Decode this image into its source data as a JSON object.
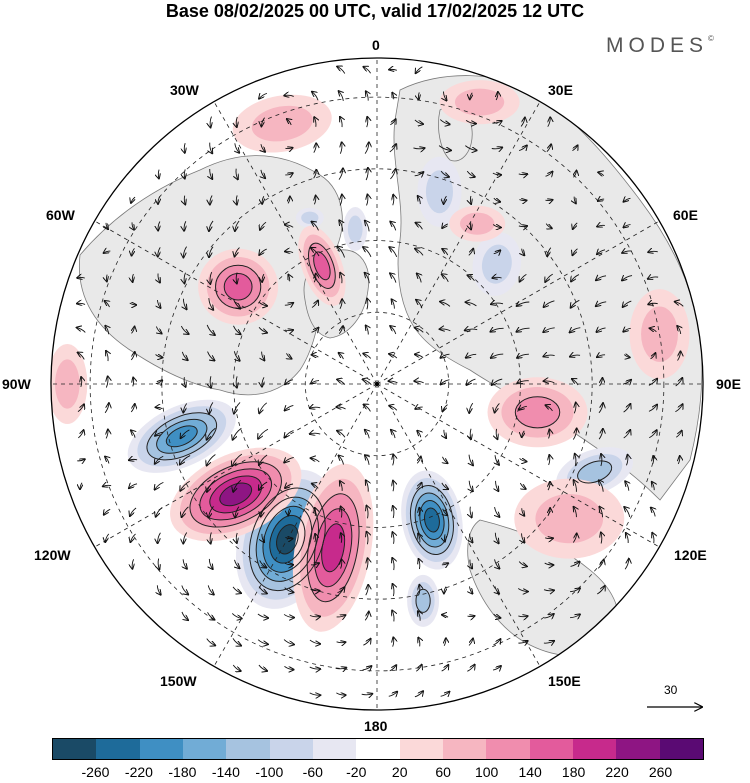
{
  "title": "Base 08/02/2025 00 UTC, valid 17/02/2025 12 UTC",
  "brand": "MODES",
  "brand_mark": "©",
  "longitude_labels": {
    "lon_0": "0",
    "lon_30e": "30E",
    "lon_60e": "60E",
    "lon_90e": "90E",
    "lon_120e": "120E",
    "lon_150e": "150E",
    "lon_180": "180",
    "lon_150w": "150W",
    "lon_120w": "120W",
    "lon_90w": "90W",
    "lon_60w": "60W",
    "lon_30w": "30W"
  },
  "reference_vector": "30",
  "colorbar": {
    "colors": [
      "#1a4a66",
      "#1e6b9a",
      "#3f8fc3",
      "#71acd6",
      "#a6c3e0",
      "#c9d4ea",
      "#e7e7f2",
      "#ffffff",
      "#fbd9d9",
      "#f6b6c1",
      "#f08dae",
      "#e35b9c",
      "#c72a8c",
      "#8e1583",
      "#5a0a73"
    ],
    "tick_labels": [
      "-260",
      "-220",
      "-180",
      "-140",
      "-100",
      "-60",
      "-20",
      "20",
      "60",
      "100",
      "140",
      "180",
      "220",
      "260"
    ]
  },
  "anomaly_features": [
    {
      "sign": "negative",
      "level": "-180",
      "lon": -105,
      "dist": 0.62,
      "rx": 58,
      "ry": 30,
      "rot": -25
    },
    {
      "sign": "negative",
      "level": "-260",
      "lon": -150,
      "dist": 0.55,
      "rx": 48,
      "ry": 72,
      "rot": 20
    },
    {
      "sign": "negative",
      "level": "-220",
      "lon": 158,
      "dist": 0.45,
      "rx": 30,
      "ry": 50,
      "rot": -10
    },
    {
      "sign": "negative",
      "level": "-100",
      "lon": 112,
      "dist": 0.72,
      "rx": 40,
      "ry": 22,
      "rot": -20
    },
    {
      "sign": "negative",
      "level": "-100",
      "lon": 168,
      "dist": 0.68,
      "rx": 16,
      "ry": 26,
      "rot": 0
    },
    {
      "sign": "negative",
      "level": "-60",
      "lon": 45,
      "dist": 0.52,
      "rx": 24,
      "ry": 32,
      "rot": 10
    },
    {
      "sign": "negative",
      "level": "-60",
      "lon": 18,
      "dist": 0.62,
      "rx": 22,
      "ry": 35,
      "rot": 0
    },
    {
      "sign": "negative",
      "level": "-60",
      "lon": -8,
      "dist": 0.48,
      "rx": 12,
      "ry": 22,
      "rot": 0
    },
    {
      "sign": "negative",
      "level": "-60",
      "lon": -22,
      "dist": 0.55,
      "rx": 14,
      "ry": 10,
      "rot": 0
    },
    {
      "sign": "positive",
      "level": "220",
      "lon": -128,
      "dist": 0.55,
      "rx": 70,
      "ry": 40,
      "rot": -25
    },
    {
      "sign": "positive",
      "level": "180",
      "lon": -165,
      "dist": 0.52,
      "rx": 38,
      "ry": 85,
      "rot": 10
    },
    {
      "sign": "positive",
      "level": "140",
      "lon": -55,
      "dist": 0.52,
      "rx": 40,
      "ry": 38,
      "rot": 0
    },
    {
      "sign": "positive",
      "level": "140",
      "lon": -25,
      "dist": 0.4,
      "rx": 20,
      "ry": 42,
      "rot": -20
    },
    {
      "sign": "positive",
      "level": "100",
      "lon": 100,
      "dist": 0.5,
      "rx": 50,
      "ry": 35,
      "rot": 0
    },
    {
      "sign": "positive",
      "level": "60",
      "lon": 125,
      "dist": 0.72,
      "rx": 55,
      "ry": 40,
      "rot": 0
    },
    {
      "sign": "positive",
      "level": "60",
      "lon": 32,
      "dist": 0.58,
      "rx": 28,
      "ry": 18,
      "rot": 0
    },
    {
      "sign": "positive",
      "level": "60",
      "lon": -20,
      "dist": 0.85,
      "rx": 50,
      "ry": 28,
      "rot": -10
    },
    {
      "sign": "positive",
      "level": "60",
      "lon": 20,
      "dist": 0.92,
      "rx": 40,
      "ry": 22,
      "rot": 0
    },
    {
      "sign": "positive",
      "level": "60",
      "lon": 80,
      "dist": 0.88,
      "rx": 30,
      "ry": 45,
      "rot": 0
    },
    {
      "sign": "positive",
      "level": "60",
      "lon": -90,
      "dist": 0.95,
      "rx": 20,
      "ry": 40,
      "rot": 0
    }
  ]
}
